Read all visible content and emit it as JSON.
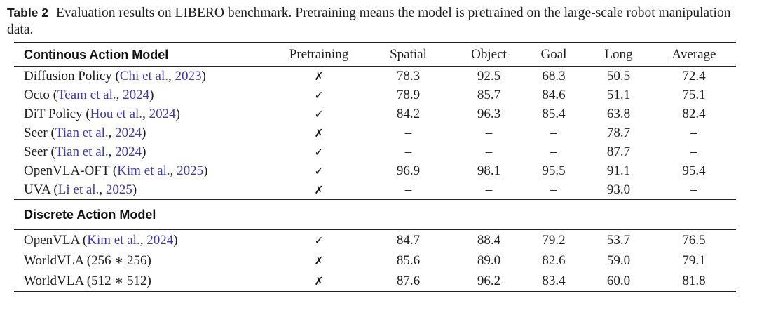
{
  "caption": {
    "label": "Table 2",
    "text": "Evaluation results on LIBERO benchmark. Pretraining means the model is pretrained on the large-scale robot manipulation data."
  },
  "colors": {
    "citation_link": "#3d38ae",
    "text": "#1c1c1c",
    "rule": "#222222"
  },
  "marks": {
    "check": "✓",
    "cross": "✗"
  },
  "table": {
    "columns": [
      "Pretraining",
      "Spatial",
      "Object",
      "Goal",
      "Long",
      "Average"
    ],
    "sections": [
      {
        "header": "Continous Action Model",
        "rows": [
          {
            "model": "Diffusion Policy",
            "cite": "Chi et al.",
            "year": "2023",
            "pretrained": "cross",
            "values": [
              "78.3",
              "92.5",
              "68.3",
              "50.5",
              "72.4"
            ]
          },
          {
            "model": "Octo",
            "cite": "Team et al.",
            "year": "2024",
            "pretrained": "check",
            "values": [
              "78.9",
              "85.7",
              "84.6",
              "51.1",
              "75.1"
            ]
          },
          {
            "model": "DiT Policy",
            "cite": "Hou et al.",
            "year": "2024",
            "pretrained": "check",
            "values": [
              "84.2",
              "96.3",
              "85.4",
              "63.8",
              "82.4"
            ]
          },
          {
            "model": "Seer",
            "cite": "Tian et al.",
            "year": "2024",
            "pretrained": "cross",
            "values": [
              "–",
              "–",
              "–",
              "78.7",
              "–"
            ]
          },
          {
            "model": "Seer",
            "cite": "Tian et al.",
            "year": "2024",
            "pretrained": "check",
            "values": [
              "–",
              "–",
              "–",
              "87.7",
              "–"
            ]
          },
          {
            "model": "OpenVLA-OFT",
            "cite": "Kim et al.",
            "year": "2025",
            "pretrained": "check",
            "values": [
              "96.9",
              "98.1",
              "95.5",
              "91.1",
              "95.4"
            ]
          },
          {
            "model": "UVA",
            "cite": "Li et al.",
            "year": "2025",
            "pretrained": "cross",
            "values": [
              "–",
              "–",
              "–",
              "93.0",
              "–"
            ]
          }
        ]
      },
      {
        "header": "Discrete Action Model",
        "rows": [
          {
            "model": "OpenVLA",
            "cite": "Kim et al.",
            "year": "2024",
            "pretrained": "check",
            "values": [
              "84.7",
              "88.4",
              "79.2",
              "53.7",
              "76.5"
            ]
          },
          {
            "model": "WorldVLA (256 ∗ 256)",
            "cite": null,
            "year": null,
            "pretrained": "cross",
            "values": [
              "85.6",
              "89.0",
              "82.6",
              "59.0",
              "79.1"
            ]
          },
          {
            "model": "WorldVLA (512 ∗ 512)",
            "cite": null,
            "year": null,
            "pretrained": "cross",
            "values": [
              "87.6",
              "96.2",
              "83.4",
              "60.0",
              "81.8"
            ]
          }
        ]
      }
    ]
  }
}
